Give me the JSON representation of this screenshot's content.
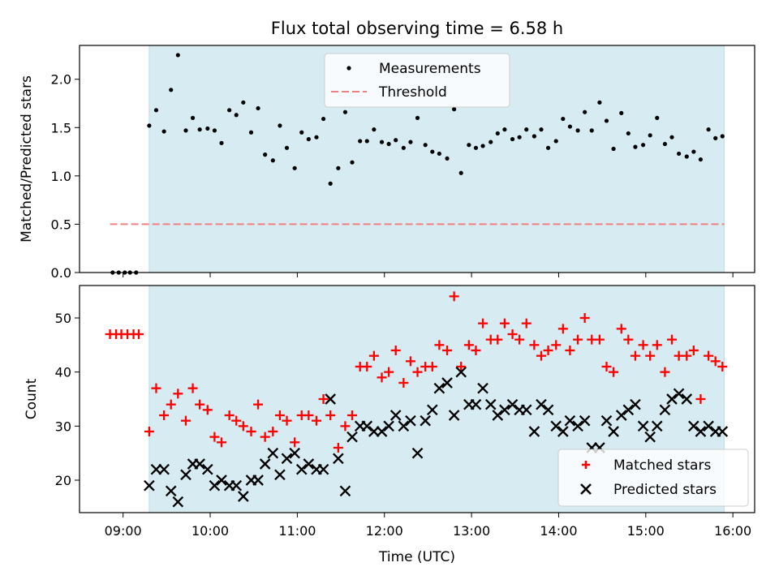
{
  "chart_data": [
    {
      "type": "scatter",
      "title": "Flux total observing time = 6.58 h",
      "xlabel": "",
      "ylabel": "Matched/Predicted stars",
      "xlim": [
        8.5,
        16.25
      ],
      "ylim": [
        0,
        2.35
      ],
      "yticks": [
        0.0,
        0.5,
        1.0,
        1.5,
        2.0
      ],
      "ytick_labels": [
        "0.0",
        "0.5",
        "1.0",
        "1.5",
        "2.0"
      ],
      "shaded_span": {
        "from": 9.3,
        "to": 15.9,
        "color": "#add8e6"
      },
      "legend": {
        "position": "top-center",
        "measurements_label": "Measurements",
        "threshold_label": "Threshold"
      },
      "threshold": {
        "value": 0.5,
        "x_from": 8.85,
        "x_to": 15.9,
        "color": "#f08080"
      },
      "series": [
        {
          "name": "Measurements",
          "color": "#000000",
          "x": [
            8.88,
            8.95,
            9.02,
            9.08,
            9.15,
            9.3,
            9.38,
            9.47,
            9.55,
            9.63,
            9.72,
            9.8,
            9.88,
            9.97,
            10.05,
            10.13,
            10.22,
            10.3,
            10.38,
            10.47,
            10.55,
            10.63,
            10.72,
            10.8,
            10.88,
            10.97,
            11.05,
            11.13,
            11.22,
            11.3,
            11.38,
            11.47,
            11.55,
            11.63,
            11.72,
            11.8,
            11.88,
            11.97,
            12.05,
            12.13,
            12.22,
            12.3,
            12.38,
            12.47,
            12.55,
            12.63,
            12.72,
            12.8,
            12.88,
            12.97,
            13.05,
            13.13,
            13.22,
            13.3,
            13.38,
            13.47,
            13.55,
            13.63,
            13.72,
            13.8,
            13.88,
            13.97,
            14.05,
            14.13,
            14.22,
            14.3,
            14.38,
            14.47,
            14.55,
            14.63,
            14.72,
            14.8,
            14.88,
            14.97,
            15.05,
            15.13,
            15.22,
            15.3,
            15.38,
            15.47,
            15.55,
            15.63,
            15.72,
            15.8,
            15.88
          ],
          "y": [
            0,
            0,
            0,
            0,
            0,
            1.52,
            1.68,
            1.46,
            1.89,
            2.25,
            1.47,
            1.6,
            1.48,
            1.49,
            1.47,
            1.34,
            1.68,
            1.63,
            1.76,
            1.45,
            1.7,
            1.22,
            1.16,
            1.52,
            1.29,
            1.08,
            1.45,
            1.38,
            1.4,
            1.59,
            0.92,
            1.08,
            1.66,
            1.14,
            1.36,
            1.36,
            1.48,
            1.35,
            1.33,
            1.37,
            1.29,
            1.35,
            1.6,
            1.32,
            1.25,
            1.23,
            1.18,
            1.69,
            1.03,
            1.32,
            1.29,
            1.31,
            1.35,
            1.44,
            1.48,
            1.38,
            1.4,
            1.48,
            1.41,
            1.48,
            1.29,
            1.36,
            1.59,
            1.51,
            1.47,
            1.66,
            1.47,
            1.76,
            1.57,
            1.28,
            1.65,
            1.44,
            1.3,
            1.32,
            1.42,
            1.6,
            1.33,
            1.4,
            1.23,
            1.2,
            1.25,
            1.17,
            1.48,
            1.39,
            1.41
          ]
        }
      ]
    },
    {
      "type": "scatter",
      "title": "",
      "xlabel": "Time (UTC)",
      "ylabel": "Count",
      "xlim": [
        8.5,
        16.25
      ],
      "ylim": [
        14,
        56
      ],
      "xticks": [
        9,
        10,
        11,
        12,
        13,
        14,
        15,
        16
      ],
      "xtick_labels": [
        "09:00",
        "10:00",
        "11:00",
        "12:00",
        "13:00",
        "14:00",
        "15:00",
        "16:00"
      ],
      "yticks": [
        20,
        30,
        40,
        50
      ],
      "ytick_labels": [
        "20",
        "30",
        "40",
        "50"
      ],
      "shaded_span": {
        "from": 9.3,
        "to": 15.9,
        "color": "#add8e6"
      },
      "legend": {
        "position": "lower-right",
        "matched_label": "Matched stars",
        "predicted_label": "Predicted stars"
      },
      "series": [
        {
          "name": "Matched stars",
          "marker": "+",
          "color": "#ff0000",
          "x": [
            8.85,
            8.92,
            8.98,
            9.05,
            9.12,
            9.18,
            9.3,
            9.38,
            9.47,
            9.55,
            9.63,
            9.72,
            9.8,
            9.88,
            9.97,
            10.05,
            10.13,
            10.22,
            10.3,
            10.38,
            10.47,
            10.55,
            10.63,
            10.72,
            10.8,
            10.88,
            10.97,
            11.05,
            11.13,
            11.22,
            11.3,
            11.38,
            11.47,
            11.55,
            11.63,
            11.72,
            11.8,
            11.88,
            11.97,
            12.05,
            12.13,
            12.22,
            12.3,
            12.38,
            12.47,
            12.55,
            12.63,
            12.72,
            12.8,
            12.88,
            12.97,
            13.05,
            13.13,
            13.22,
            13.3,
            13.38,
            13.47,
            13.55,
            13.63,
            13.72,
            13.8,
            13.88,
            13.97,
            14.05,
            14.13,
            14.22,
            14.3,
            14.38,
            14.47,
            14.55,
            14.63,
            14.72,
            14.8,
            14.88,
            14.97,
            15.05,
            15.13,
            15.22,
            15.3,
            15.38,
            15.47,
            15.55,
            15.63,
            15.72,
            15.8,
            15.88
          ],
          "y": [
            47,
            47,
            47,
            47,
            47,
            47,
            29,
            37,
            32,
            34,
            36,
            31,
            37,
            34,
            33,
            28,
            27,
            32,
            31,
            30,
            29,
            34,
            28,
            29,
            32,
            31,
            27,
            32,
            32,
            31,
            35,
            32,
            26,
            30,
            32,
            41,
            41,
            43,
            39,
            40,
            44,
            38,
            42,
            40,
            41,
            41,
            45,
            44,
            54,
            41,
            45,
            44,
            49,
            46,
            46,
            49,
            47,
            46,
            49,
            45,
            43,
            44,
            45,
            48,
            44,
            46,
            50,
            46,
            46,
            41,
            40,
            48,
            46,
            43,
            45,
            43,
            45,
            40,
            46,
            43,
            43,
            44,
            35,
            43,
            42,
            41
          ]
        },
        {
          "name": "Predicted stars",
          "marker": "x",
          "color": "#000000",
          "x": [
            9.3,
            9.38,
            9.47,
            9.55,
            9.63,
            9.72,
            9.8,
            9.88,
            9.97,
            10.05,
            10.13,
            10.22,
            10.3,
            10.38,
            10.47,
            10.55,
            10.63,
            10.72,
            10.8,
            10.88,
            10.97,
            11.05,
            11.13,
            11.22,
            11.3,
            11.38,
            11.47,
            11.55,
            11.63,
            11.72,
            11.8,
            11.88,
            11.97,
            12.05,
            12.13,
            12.22,
            12.3,
            12.38,
            12.47,
            12.55,
            12.63,
            12.72,
            12.8,
            12.88,
            12.97,
            13.05,
            13.13,
            13.22,
            13.3,
            13.38,
            13.47,
            13.55,
            13.63,
            13.72,
            13.8,
            13.88,
            13.97,
            14.05,
            14.13,
            14.22,
            14.3,
            14.38,
            14.47,
            14.55,
            14.63,
            14.72,
            14.8,
            14.88,
            14.97,
            15.05,
            15.13,
            15.22,
            15.3,
            15.38,
            15.47,
            15.55,
            15.63,
            15.72,
            15.8,
            15.88
          ],
          "y": [
            19,
            22,
            22,
            18,
            16,
            21,
            23,
            23,
            22,
            19,
            20,
            19,
            19,
            17,
            20,
            20,
            23,
            25,
            21,
            24,
            25,
            22,
            23,
            22,
            22,
            35,
            24,
            18,
            28,
            30,
            30,
            29,
            29,
            30,
            32,
            30,
            31,
            25,
            31,
            33,
            37,
            38,
            32,
            40,
            34,
            34,
            37,
            34,
            32,
            33,
            34,
            33,
            33,
            29,
            34,
            33,
            30,
            29,
            31,
            30,
            31,
            26,
            26,
            31,
            29,
            32,
            33,
            34,
            30,
            28,
            30,
            33,
            35,
            36,
            35,
            30,
            29,
            30,
            29,
            29
          ]
        }
      ]
    }
  ]
}
